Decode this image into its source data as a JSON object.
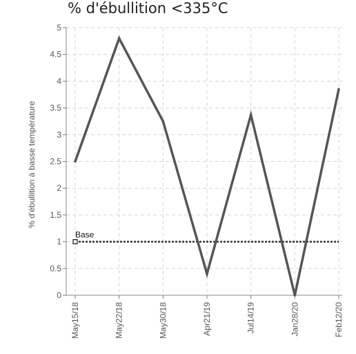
{
  "chart_data": {
    "type": "line",
    "title": "% d'ébullition <335°C",
    "xlabel": "",
    "ylabel": "% d'ébullition à basse température",
    "categories": [
      "May15/18",
      "May22/18",
      "May30/18",
      "Apr21/19",
      "Jul14/19",
      "Jan28/20",
      "Feb12/20"
    ],
    "series": [
      {
        "values": [
          2.5,
          4.8,
          3.25,
          0.4,
          3.37,
          0.0,
          3.85
        ],
        "color": "#555555"
      }
    ],
    "reference_line": {
      "label": "Base",
      "value": 1.0,
      "color": "#333333"
    },
    "ylim": [
      0,
      5
    ],
    "yticks": [
      "0",
      "0.5",
      "1",
      "1.5",
      "2",
      "2.5",
      "3",
      "3.5",
      "4",
      "4.5",
      "5"
    ],
    "grid": true
  }
}
